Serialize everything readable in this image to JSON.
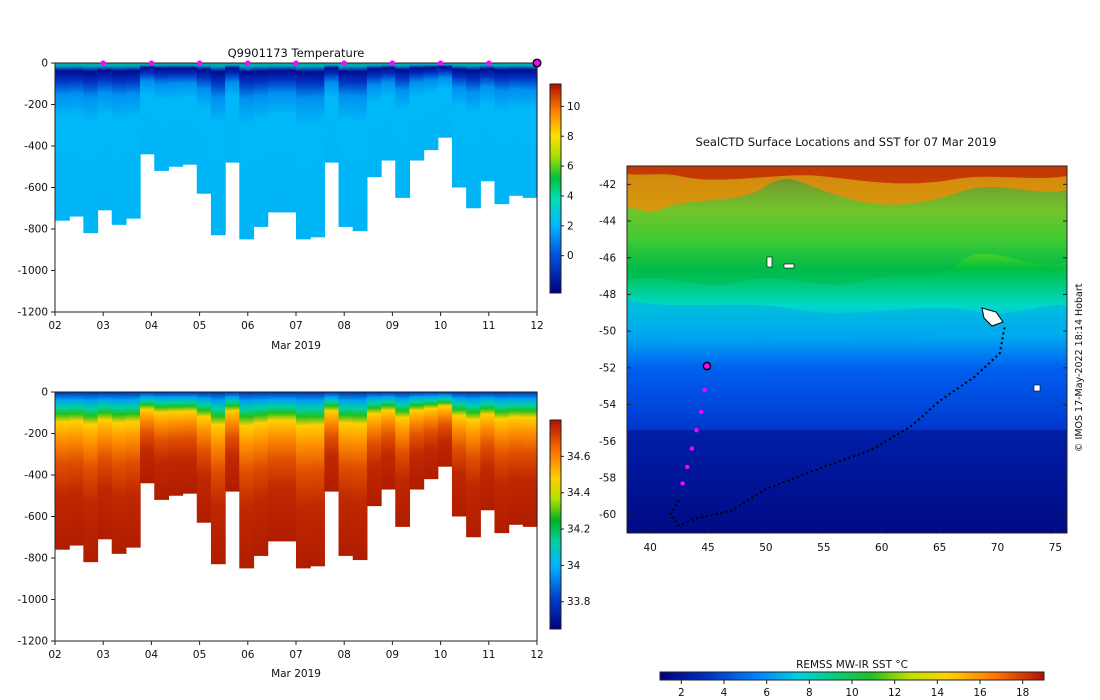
{
  "charts": {
    "temperature": {
      "title": "Q9901173  Temperature",
      "xlabel": "Mar 2019",
      "x_ticks": [
        "02",
        "03",
        "04",
        "05",
        "06",
        "07",
        "08",
        "09",
        "10",
        "11",
        "12"
      ],
      "y_ticks": [
        "0",
        "-200",
        "-400",
        "-600",
        "-800",
        "-1000",
        "-1200"
      ],
      "colorbar_ticks": [
        "10",
        "8",
        "6",
        "4",
        "2",
        "0"
      ],
      "colorbar_range": [
        -2.5,
        11.5
      ]
    },
    "salinity": {
      "title": "",
      "xlabel": "Mar 2019",
      "x_ticks": [
        "02",
        "03",
        "04",
        "05",
        "06",
        "07",
        "08",
        "09",
        "10",
        "11",
        "12"
      ],
      "y_ticks": [
        "0",
        "-200",
        "-400",
        "-600",
        "-800",
        "-1000",
        "-1200"
      ],
      "colorbar_ticks": [
        "34.6",
        "34.4",
        "34.2",
        "34",
        "33.8"
      ],
      "colorbar_range": [
        33.65,
        34.8
      ]
    },
    "map": {
      "title": "SealCTD Surface Locations and SST for 07 Mar 2019",
      "x_ticks": [
        "40",
        "45",
        "50",
        "55",
        "60",
        "65",
        "70",
        "75"
      ],
      "y_ticks": [
        "-42",
        "-44",
        "-46",
        "-48",
        "-50",
        "-52",
        "-54",
        "-56",
        "-58",
        "-60"
      ],
      "colorbar_label": "REMSS MW-IR SST °C",
      "colorbar_ticks": [
        "2",
        "4",
        "6",
        "8",
        "10",
        "12",
        "14",
        "16",
        "18"
      ],
      "watermark": "© IMOS 17-May-2022 18:14 Hobart"
    }
  },
  "chart_data": [
    {
      "type": "heatmap",
      "title": "Q9901173  Temperature",
      "xlabel": "Mar 2019",
      "ylabel": "",
      "xlim": [
        2,
        12
      ],
      "ylim": [
        -1200,
        0
      ],
      "units_hint": "depth (m) vs date, colour = temperature °C",
      "profile_max_depth_m": [
        760,
        740,
        820,
        710,
        780,
        750,
        440,
        520,
        500,
        490,
        630,
        830,
        480,
        850,
        790,
        720,
        720,
        850,
        840,
        480,
        790,
        810,
        550,
        470,
        650,
        470,
        420,
        360,
        600,
        700,
        570,
        680,
        640,
        650
      ],
      "profile_markers_days": [
        3,
        4,
        5,
        6,
        7,
        8,
        9,
        10,
        11
      ],
      "last_profile_day": 12
    },
    {
      "type": "heatmap",
      "title": "",
      "xlabel": "Mar 2019",
      "ylabel": "",
      "xlim": [
        2,
        12
      ],
      "ylim": [
        -1200,
        0
      ],
      "units_hint": "depth (m) vs date, colour = salinity",
      "profile_max_depth_m": [
        760,
        740,
        820,
        710,
        780,
        750,
        440,
        520,
        500,
        490,
        630,
        830,
        480,
        850,
        790,
        720,
        720,
        850,
        840,
        480,
        790,
        810,
        550,
        470,
        650,
        470,
        420,
        360,
        600,
        700,
        570,
        680,
        640,
        650
      ]
    },
    {
      "type": "heatmap",
      "title": "SealCTD Surface Locations and SST for 07 Mar 2019",
      "xlabel": "",
      "ylabel": "",
      "xlim": [
        38,
        76
      ],
      "ylim": [
        -61,
        -41
      ],
      "colorbar": {
        "label": "REMSS MW-IR SST °C",
        "range": [
          1,
          19
        ]
      },
      "track_black": [
        [
          70.6,
          -49.8
        ],
        [
          70.2,
          -51.2
        ],
        [
          68,
          -52.5
        ],
        [
          65,
          -53.8
        ],
        [
          62.5,
          -55.2
        ],
        [
          59,
          -56.5
        ],
        [
          55,
          -57.4
        ],
        [
          50,
          -58.6
        ],
        [
          47,
          -59.8
        ],
        [
          44,
          -60.2
        ],
        [
          42.5,
          -60.6
        ],
        [
          41.7,
          -60.0
        ],
        [
          42.5,
          -59.2
        ]
      ],
      "track_magenta": [
        [
          42.8,
          -58.3
        ],
        [
          43.2,
          -57.4
        ],
        [
          43.6,
          -56.4
        ],
        [
          44.0,
          -55.4
        ],
        [
          44.4,
          -54.4
        ],
        [
          44.7,
          -53.2
        ],
        [
          44.9,
          -51.9
        ]
      ],
      "current_position": [
        44.9,
        -51.9
      ]
    }
  ]
}
